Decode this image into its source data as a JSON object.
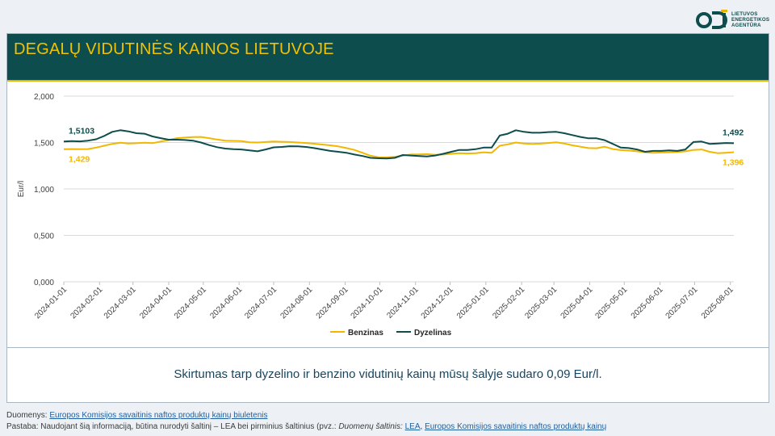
{
  "logo": {
    "line1": "LIETUVOS",
    "line2": "ENERGETIKOS",
    "line3": "AGENTŪRA"
  },
  "header": {
    "title": "DEGALŲ VIDUTINĖS KAINOS LIETUVOJE"
  },
  "summary": {
    "text": "Skirtumas tarp dyzelino ir benzino vidutinių kainų mūsų šalyje sudaro 0,09 Eur/l."
  },
  "footer": {
    "source_label": "Duomenys: ",
    "source_link": "Europos Komisijos savaitinis naftos produktų kainų biuletenis",
    "note_prefix": "Pastaba: Naudojant šią informaciją, būtina nurodyti šaltinį – LEA bei pirminius šaltinius (pvz.: ",
    "note_italic": "Duomenų šaltinis: ",
    "note_link1": "LEA",
    "note_sep": ", ",
    "note_link2": "Europos Komisijos savaitinis naftos produktų kainų"
  },
  "colors": {
    "benzinas": "#f2b800",
    "dyzelinas": "#0e4d4d",
    "grid": "#d9d9d9",
    "accent": "#e8b400"
  },
  "chart_data": {
    "type": "line",
    "title": "",
    "xlabel": "",
    "ylabel": "Eur/l",
    "ylim": [
      0,
      2
    ],
    "y_ticks": [
      "0,000",
      "0,500",
      "1,000",
      "1,500",
      "2,000"
    ],
    "x_start": "2024-01-01",
    "x_end": "2025-08-04",
    "x_ticks": [
      "2024-01-01",
      "2024-02-01",
      "2024-03-01",
      "2024-04-01",
      "2024-05-01",
      "2024-06-01",
      "2024-07-01",
      "2024-08-01",
      "2024-09-01",
      "2024-10-01",
      "2024-11-01",
      "2024-12-01",
      "2025-01-01",
      "2025-02-01",
      "2025-03-01",
      "2025-04-01",
      "2025-05-01",
      "2025-06-01",
      "2025-07-01",
      "2025-08-01"
    ],
    "grid": true,
    "legend_position": "bottom",
    "series": [
      {
        "name": "Benzinas",
        "color": "#f2b800",
        "start_label": "1,429",
        "end_label": "1,396",
        "points": [
          [
            "2024-01-01",
            1.429
          ],
          [
            "2024-01-08",
            1.43
          ],
          [
            "2024-01-15",
            1.428
          ],
          [
            "2024-01-22",
            1.43
          ],
          [
            "2024-01-29",
            1.445
          ],
          [
            "2024-02-05",
            1.465
          ],
          [
            "2024-02-12",
            1.485
          ],
          [
            "2024-02-19",
            1.497
          ],
          [
            "2024-02-26",
            1.49
          ],
          [
            "2024-03-04",
            1.492
          ],
          [
            "2024-03-11",
            1.498
          ],
          [
            "2024-03-18",
            1.493
          ],
          [
            "2024-03-25",
            1.51
          ],
          [
            "2024-04-01",
            1.527
          ],
          [
            "2024-04-08",
            1.547
          ],
          [
            "2024-04-15",
            1.553
          ],
          [
            "2024-04-22",
            1.558
          ],
          [
            "2024-04-29",
            1.56
          ],
          [
            "2024-05-06",
            1.547
          ],
          [
            "2024-05-13",
            1.532
          ],
          [
            "2024-05-20",
            1.52
          ],
          [
            "2024-05-27",
            1.517
          ],
          [
            "2024-06-03",
            1.515
          ],
          [
            "2024-06-10",
            1.503
          ],
          [
            "2024-06-17",
            1.5
          ],
          [
            "2024-06-24",
            1.505
          ],
          [
            "2024-07-01",
            1.51
          ],
          [
            "2024-07-08",
            1.508
          ],
          [
            "2024-07-15",
            1.505
          ],
          [
            "2024-07-22",
            1.5
          ],
          [
            "2024-07-29",
            1.495
          ],
          [
            "2024-08-05",
            1.487
          ],
          [
            "2024-08-12",
            1.478
          ],
          [
            "2024-08-19",
            1.47
          ],
          [
            "2024-08-26",
            1.458
          ],
          [
            "2024-09-02",
            1.44
          ],
          [
            "2024-09-09",
            1.42
          ],
          [
            "2024-09-16",
            1.39
          ],
          [
            "2024-09-23",
            1.357
          ],
          [
            "2024-09-30",
            1.342
          ],
          [
            "2024-10-07",
            1.34
          ],
          [
            "2024-10-14",
            1.345
          ],
          [
            "2024-10-21",
            1.36
          ],
          [
            "2024-10-28",
            1.37
          ],
          [
            "2024-11-04",
            1.372
          ],
          [
            "2024-11-11",
            1.375
          ],
          [
            "2024-11-18",
            1.368
          ],
          [
            "2024-11-25",
            1.37
          ],
          [
            "2024-12-02",
            1.378
          ],
          [
            "2024-12-09",
            1.385
          ],
          [
            "2024-12-16",
            1.382
          ],
          [
            "2024-12-23",
            1.385
          ],
          [
            "2024-12-30",
            1.395
          ],
          [
            "2025-01-06",
            1.39
          ],
          [
            "2025-01-13",
            1.465
          ],
          [
            "2025-01-20",
            1.48
          ],
          [
            "2025-01-27",
            1.5
          ],
          [
            "2025-02-03",
            1.49
          ],
          [
            "2025-02-10",
            1.485
          ],
          [
            "2025-02-17",
            1.488
          ],
          [
            "2025-02-24",
            1.495
          ],
          [
            "2025-03-03",
            1.502
          ],
          [
            "2025-03-10",
            1.49
          ],
          [
            "2025-03-17",
            1.47
          ],
          [
            "2025-03-24",
            1.455
          ],
          [
            "2025-03-31",
            1.44
          ],
          [
            "2025-04-07",
            1.438
          ],
          [
            "2025-04-14",
            1.455
          ],
          [
            "2025-04-21",
            1.43
          ],
          [
            "2025-04-28",
            1.418
          ],
          [
            "2025-05-05",
            1.413
          ],
          [
            "2025-05-12",
            1.405
          ],
          [
            "2025-05-19",
            1.395
          ],
          [
            "2025-05-26",
            1.39
          ],
          [
            "2025-06-02",
            1.392
          ],
          [
            "2025-06-09",
            1.395
          ],
          [
            "2025-06-16",
            1.397
          ],
          [
            "2025-06-23",
            1.405
          ],
          [
            "2025-06-30",
            1.42
          ],
          [
            "2025-07-07",
            1.425
          ],
          [
            "2025-07-14",
            1.4
          ],
          [
            "2025-07-21",
            1.385
          ],
          [
            "2025-07-28",
            1.39
          ],
          [
            "2025-08-04",
            1.396
          ]
        ]
      },
      {
        "name": "Dyzelinas",
        "color": "#0e4d4d",
        "start_label": "1,5103",
        "end_label": "1,492",
        "points": [
          [
            "2024-01-01",
            1.5103
          ],
          [
            "2024-01-08",
            1.515
          ],
          [
            "2024-01-15",
            1.512
          ],
          [
            "2024-01-22",
            1.52
          ],
          [
            "2024-01-29",
            1.535
          ],
          [
            "2024-02-05",
            1.57
          ],
          [
            "2024-02-12",
            1.615
          ],
          [
            "2024-02-19",
            1.632
          ],
          [
            "2024-02-26",
            1.62
          ],
          [
            "2024-03-04",
            1.6
          ],
          [
            "2024-03-11",
            1.595
          ],
          [
            "2024-03-18",
            1.565
          ],
          [
            "2024-03-25",
            1.547
          ],
          [
            "2024-04-01",
            1.53
          ],
          [
            "2024-04-08",
            1.53
          ],
          [
            "2024-04-15",
            1.527
          ],
          [
            "2024-04-22",
            1.52
          ],
          [
            "2024-04-29",
            1.5
          ],
          [
            "2024-05-06",
            1.472
          ],
          [
            "2024-05-13",
            1.45
          ],
          [
            "2024-05-20",
            1.435
          ],
          [
            "2024-05-27",
            1.428
          ],
          [
            "2024-06-03",
            1.425
          ],
          [
            "2024-06-10",
            1.415
          ],
          [
            "2024-06-17",
            1.405
          ],
          [
            "2024-06-24",
            1.425
          ],
          [
            "2024-07-01",
            1.448
          ],
          [
            "2024-07-08",
            1.452
          ],
          [
            "2024-07-15",
            1.46
          ],
          [
            "2024-07-22",
            1.458
          ],
          [
            "2024-07-29",
            1.452
          ],
          [
            "2024-08-05",
            1.44
          ],
          [
            "2024-08-12",
            1.425
          ],
          [
            "2024-08-19",
            1.41
          ],
          [
            "2024-08-26",
            1.4
          ],
          [
            "2024-09-02",
            1.39
          ],
          [
            "2024-09-09",
            1.37
          ],
          [
            "2024-09-16",
            1.355
          ],
          [
            "2024-09-23",
            1.335
          ],
          [
            "2024-09-30",
            1.33
          ],
          [
            "2024-10-07",
            1.328
          ],
          [
            "2024-10-14",
            1.335
          ],
          [
            "2024-10-21",
            1.365
          ],
          [
            "2024-10-28",
            1.36
          ],
          [
            "2024-11-04",
            1.355
          ],
          [
            "2024-11-11",
            1.35
          ],
          [
            "2024-11-18",
            1.36
          ],
          [
            "2024-11-25",
            1.378
          ],
          [
            "2024-12-02",
            1.4
          ],
          [
            "2024-12-09",
            1.42
          ],
          [
            "2024-12-16",
            1.42
          ],
          [
            "2024-12-23",
            1.428
          ],
          [
            "2024-12-30",
            1.445
          ],
          [
            "2025-01-06",
            1.445
          ],
          [
            "2025-01-13",
            1.575
          ],
          [
            "2025-01-20",
            1.595
          ],
          [
            "2025-01-27",
            1.632
          ],
          [
            "2025-02-03",
            1.615
          ],
          [
            "2025-02-10",
            1.605
          ],
          [
            "2025-02-17",
            1.605
          ],
          [
            "2025-02-24",
            1.612
          ],
          [
            "2025-03-03",
            1.615
          ],
          [
            "2025-03-10",
            1.6
          ],
          [
            "2025-03-17",
            1.58
          ],
          [
            "2025-03-24",
            1.56
          ],
          [
            "2025-03-31",
            1.545
          ],
          [
            "2025-04-07",
            1.545
          ],
          [
            "2025-04-14",
            1.525
          ],
          [
            "2025-04-21",
            1.485
          ],
          [
            "2025-04-28",
            1.445
          ],
          [
            "2025-05-05",
            1.44
          ],
          [
            "2025-05-12",
            1.425
          ],
          [
            "2025-05-19",
            1.4
          ],
          [
            "2025-05-26",
            1.41
          ],
          [
            "2025-06-02",
            1.41
          ],
          [
            "2025-06-09",
            1.415
          ],
          [
            "2025-06-16",
            1.41
          ],
          [
            "2025-06-23",
            1.425
          ],
          [
            "2025-06-30",
            1.505
          ],
          [
            "2025-07-07",
            1.51
          ],
          [
            "2025-07-14",
            1.485
          ],
          [
            "2025-07-21",
            1.49
          ],
          [
            "2025-07-28",
            1.495
          ],
          [
            "2025-08-04",
            1.492
          ]
        ]
      }
    ]
  }
}
